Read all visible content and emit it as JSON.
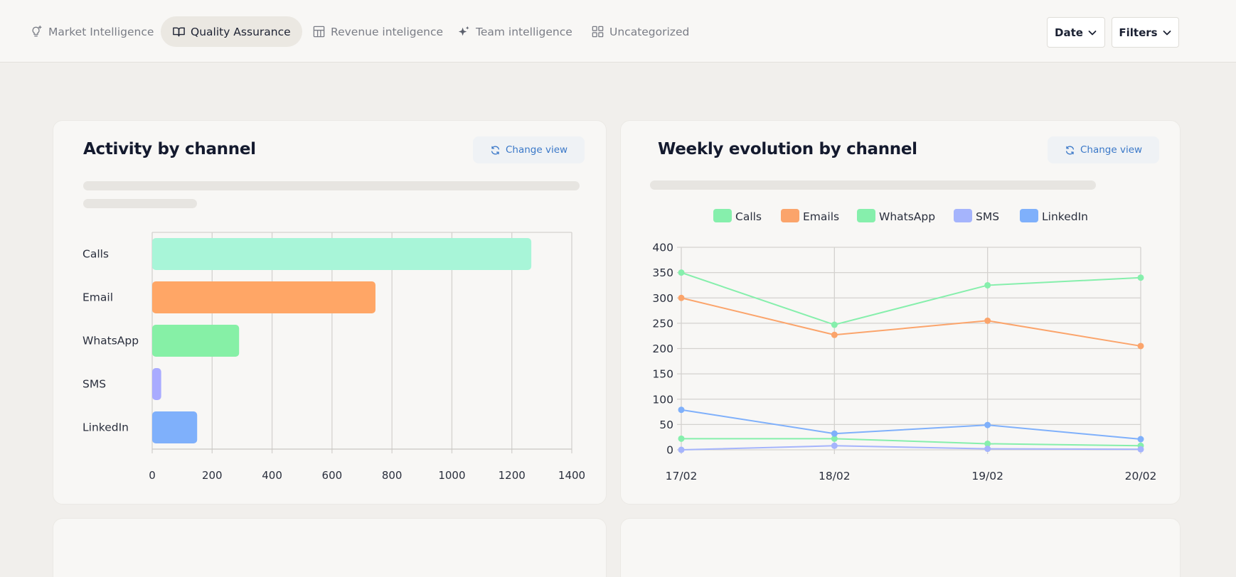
{
  "nav": {
    "tabs": [
      {
        "label": "Market Intelligence",
        "icon": "lightbulb-icon",
        "active": false
      },
      {
        "label": "Quality Assurance",
        "icon": "book-open-icon",
        "active": true
      },
      {
        "label": "Revenue inteligence",
        "icon": "layout-grid-icon",
        "active": false
      },
      {
        "label": "Team intelligence",
        "icon": "sparkle-icon",
        "active": false
      },
      {
        "label": "Uncategorized",
        "icon": "grid-icon",
        "active": false
      }
    ],
    "date_label": "Date",
    "filters_label": "Filters"
  },
  "cards": {
    "activity": {
      "title": "Activity by channel",
      "change_view_label": "Change view"
    },
    "weekly": {
      "title": "Weekly evolution by channel",
      "change_view_label": "Change view"
    }
  },
  "chart_data": [
    {
      "type": "bar",
      "orientation": "horizontal",
      "title": "Activity by channel",
      "categories": [
        "Calls",
        "Email",
        "WhatsApp",
        "SMS",
        "LinkedIn"
      ],
      "values": [
        1265,
        745,
        290,
        30,
        150
      ],
      "colors": [
        "#a8f5d8",
        "#ffa666",
        "#86f0a6",
        "#a9abff",
        "#7fb0fb"
      ],
      "xlim": [
        0,
        1400
      ],
      "xticks": [
        "0",
        "200",
        "400",
        "600",
        "800",
        "1000",
        "1200",
        "1400"
      ],
      "grid": true
    },
    {
      "type": "line",
      "title": "Weekly evolution by channel",
      "categories": [
        "17/02",
        "18/02",
        "19/02",
        "20/02"
      ],
      "ylim": [
        0,
        400
      ],
      "yticks": [
        "0",
        "50",
        "100",
        "150",
        "200",
        "250",
        "300",
        "350",
        "400"
      ],
      "legend_position": "top-center",
      "grid": true,
      "series": [
        {
          "name": "Calls",
          "color": "#86efac",
          "values": [
            350,
            247,
            325,
            340
          ]
        },
        {
          "name": "Emails",
          "color": "#fba46b",
          "values": [
            300,
            227,
            255,
            205
          ]
        },
        {
          "name": "WhatsApp",
          "color": "#86efac",
          "values": [
            22,
            22,
            12,
            8
          ]
        },
        {
          "name": "SMS",
          "color": "#a5b4fc",
          "values": [
            0,
            8,
            2,
            1
          ]
        },
        {
          "name": "LinkedIn",
          "color": "#7fb0fb",
          "values": [
            79,
            32,
            49,
            21
          ]
        }
      ]
    }
  ]
}
